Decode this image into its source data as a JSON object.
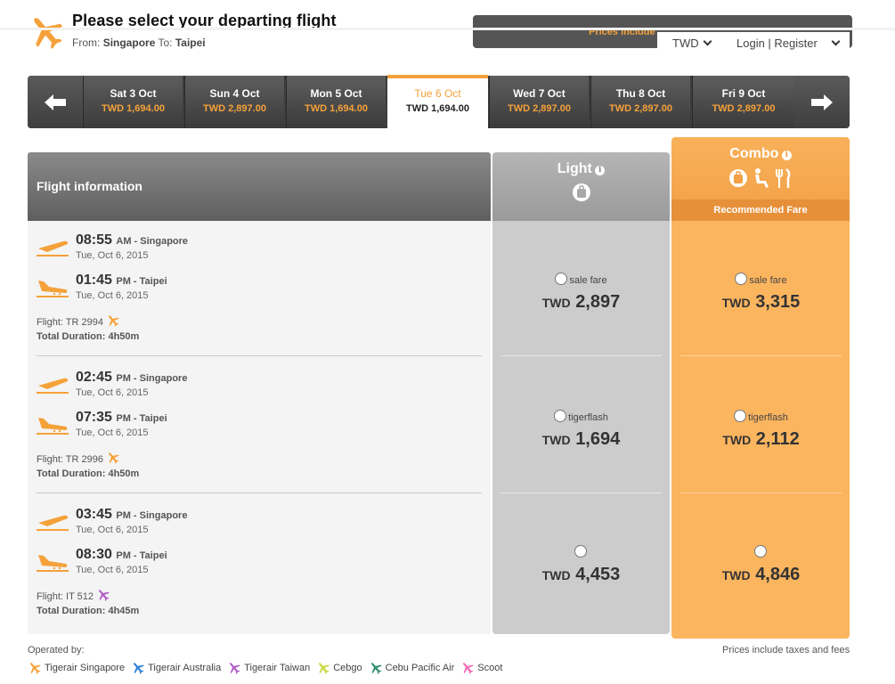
{
  "header": {
    "title": "Please select your departing flight",
    "from_label": "From:",
    "from": "Singapore",
    "to_label": "To:",
    "to": "Taipei",
    "notice_text": "Prices include",
    "currency": "TWD",
    "login_register": "Login | Register",
    "accent_color": "#f5a13a"
  },
  "date_strip": {
    "tabs": [
      {
        "date": "Sat 3 Oct",
        "price": "TWD 1,694.00"
      },
      {
        "date": "Sun 4 Oct",
        "price": "TWD 2,897.00"
      },
      {
        "date": "Mon 5 Oct",
        "price": "TWD 1,694.00"
      },
      {
        "date": "Tue 6 Oct",
        "price": "TWD 1,694.00"
      },
      {
        "date": "Wed 7 Oct",
        "price": "TWD 2,897.00"
      },
      {
        "date": "Thu 8 Oct",
        "price": "TWD 2,897.00"
      },
      {
        "date": "Fri 9 Oct",
        "price": "TWD 2,897.00"
      }
    ],
    "selected_index": 3
  },
  "columns": {
    "info": "Flight information",
    "light": "Light",
    "combo": "Combo",
    "recommended": "Recommended Fare"
  },
  "flights": [
    {
      "dep_time": "08:55",
      "dep_ampm": "AM",
      "dep_city": "Singapore",
      "dep_date": "Tue, Oct 6, 2015",
      "arr_time": "01:45",
      "arr_ampm": "PM",
      "arr_city": "Taipei",
      "arr_date": "Tue, Oct 6, 2015",
      "flight": "Flight: TR 2994",
      "duration": "Total Duration: 4h50m",
      "airline_color": "#f5a13a",
      "light": {
        "label": "sale fare",
        "currency": "TWD",
        "amount": "2,897"
      },
      "combo": {
        "label": "sale fare",
        "currency": "TWD",
        "amount": "3,315"
      }
    },
    {
      "dep_time": "02:45",
      "dep_ampm": "PM",
      "dep_city": "Singapore",
      "dep_date": "Tue, Oct 6, 2015",
      "arr_time": "07:35",
      "arr_ampm": "PM",
      "arr_city": "Taipei",
      "arr_date": "Tue, Oct 6, 2015",
      "flight": "Flight: TR 2996",
      "duration": "Total Duration: 4h50m",
      "airline_color": "#f5a13a",
      "light": {
        "label": "tigerflash",
        "currency": "TWD",
        "amount": "1,694"
      },
      "combo": {
        "label": "tigerflash",
        "currency": "TWD",
        "amount": "2,112"
      }
    },
    {
      "dep_time": "03:45",
      "dep_ampm": "PM",
      "dep_city": "Singapore",
      "dep_date": "Tue, Oct 6, 2015",
      "arr_time": "08:30",
      "arr_ampm": "PM",
      "arr_city": "Taipei",
      "arr_date": "Tue, Oct 6, 2015",
      "flight": "Flight: IT 512",
      "duration": "Total Duration: 4h45m",
      "airline_color": "#b15ec4",
      "light": {
        "label": "",
        "currency": "TWD",
        "amount": "4,453"
      },
      "combo": {
        "label": "",
        "currency": "TWD",
        "amount": "4,846"
      }
    }
  ],
  "footer": {
    "operated_by": "Operated by:",
    "taxes_note": "Prices include taxes and fees",
    "airlines": [
      {
        "name": "Tigerair Singapore",
        "color": "#f5a13a"
      },
      {
        "name": "Tigerair Australia",
        "color": "#2f7fd6"
      },
      {
        "name": "Tigerair Taiwan",
        "color": "#b15ec4"
      },
      {
        "name": "Cebgo",
        "color": "#c9d63a"
      },
      {
        "name": "Cebu Pacific Air",
        "color": "#2a8f6a"
      },
      {
        "name": "Scoot",
        "color": "#f06cb5"
      }
    ]
  }
}
